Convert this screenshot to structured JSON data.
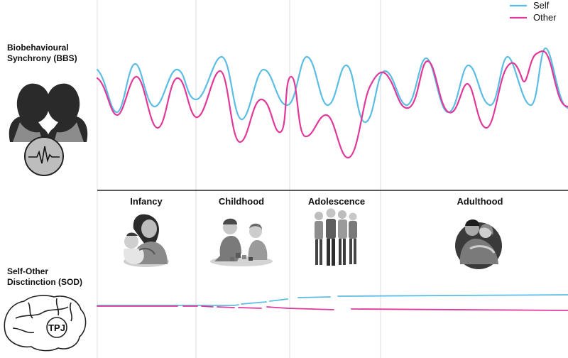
{
  "labels": {
    "bbs_line1": "Biobehavioural",
    "bbs_line2": "Synchrony (BBS)",
    "sod_line1": "Self-Other",
    "sod_line2": "Disctinction (SOD)",
    "tpj": "TPJ"
  },
  "legend": [
    {
      "name": "Self",
      "color": "#5bbde3"
    },
    {
      "name": "Other",
      "color": "#e0399a"
    }
  ],
  "stages": [
    {
      "label": "Infancy",
      "icon": "mother-holding-baby-illustration"
    },
    {
      "label": "Childhood",
      "icon": "children-playing-illustration"
    },
    {
      "label": "Adolescence",
      "icon": "teenagers-group-illustration"
    },
    {
      "label": "Adulthood",
      "icon": "embracing-couple-illustration"
    }
  ],
  "icons": {
    "bbs": "faces-with-heartbeat-icon",
    "sod": "brain-icon"
  },
  "colors": {
    "self": "#5bbde3",
    "other": "#e0399a",
    "divider": "#222222",
    "gridline": "#d9d9d9"
  }
}
